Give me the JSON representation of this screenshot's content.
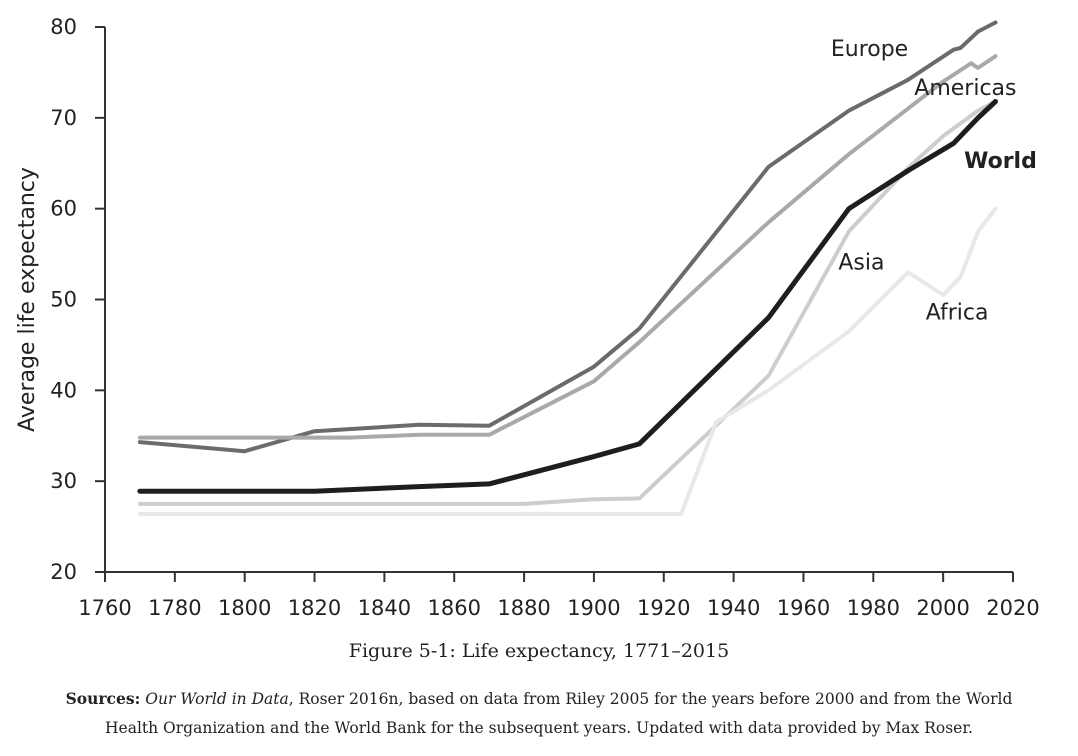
{
  "chart_data": {
    "type": "line",
    "xlabel": "",
    "ylabel": "Average life expectancy",
    "xlim": [
      1760,
      2020
    ],
    "ylim": [
      20,
      80
    ],
    "x_ticks": [
      1760,
      1780,
      1800,
      1820,
      1840,
      1860,
      1880,
      1900,
      1920,
      1940,
      1960,
      1980,
      2000,
      2020
    ],
    "y_ticks": [
      20,
      30,
      40,
      50,
      60,
      70,
      80
    ],
    "grid": false,
    "series": [
      {
        "name": "Europe",
        "color": "#6b6b6b",
        "width": 4,
        "bold": false,
        "points": [
          [
            1770,
            34.3
          ],
          [
            1800,
            33.3
          ],
          [
            1820,
            35.5
          ],
          [
            1850,
            36.2
          ],
          [
            1870,
            36.1
          ],
          [
            1900,
            42.6
          ],
          [
            1913,
            46.8
          ],
          [
            1950,
            64.6
          ],
          [
            1973,
            70.8
          ],
          [
            1990,
            74.2
          ],
          [
            2003,
            77.5
          ],
          [
            2005,
            77.7
          ],
          [
            2010,
            79.5
          ],
          [
            2015,
            80.5
          ]
        ]
      },
      {
        "name": "Americas",
        "color": "#a9a9a9",
        "width": 4,
        "bold": false,
        "points": [
          [
            1770,
            34.8
          ],
          [
            1800,
            34.8
          ],
          [
            1830,
            34.8
          ],
          [
            1850,
            35.1
          ],
          [
            1870,
            35.1
          ],
          [
            1900,
            41.0
          ],
          [
            1913,
            45.3
          ],
          [
            1950,
            58.5
          ],
          [
            1973,
            66.0
          ],
          [
            2000,
            74.0
          ],
          [
            2008,
            76.0
          ],
          [
            2010,
            75.5
          ],
          [
            2015,
            76.8
          ]
        ]
      },
      {
        "name": "Asia",
        "color": "#cdcdcd",
        "width": 4,
        "bold": false,
        "points": [
          [
            1770,
            27.5
          ],
          [
            1880,
            27.5
          ],
          [
            1900,
            28.0
          ],
          [
            1913,
            28.1
          ],
          [
            1950,
            41.6
          ],
          [
            1973,
            57.5
          ],
          [
            1990,
            64.5
          ],
          [
            2000,
            68.0
          ],
          [
            2010,
            70.8
          ],
          [
            2015,
            71.8
          ]
        ]
      },
      {
        "name": "Africa",
        "color": "#e8e8e8",
        "width": 4,
        "bold": false,
        "points": [
          [
            1770,
            26.4
          ],
          [
            1925,
            26.4
          ],
          [
            1935,
            36.5
          ],
          [
            1950,
            40.0
          ],
          [
            1973,
            46.5
          ],
          [
            1990,
            53.0
          ],
          [
            2000,
            50.5
          ],
          [
            2005,
            52.5
          ],
          [
            2010,
            57.5
          ],
          [
            2015,
            60.0
          ]
        ]
      },
      {
        "name": "World",
        "color": "#1e1e1e",
        "width": 5,
        "bold": true,
        "points": [
          [
            1770,
            28.9
          ],
          [
            1820,
            28.9
          ],
          [
            1850,
            29.4
          ],
          [
            1870,
            29.7
          ],
          [
            1900,
            32.7
          ],
          [
            1913,
            34.1
          ],
          [
            1950,
            48.0
          ],
          [
            1973,
            60.0
          ],
          [
            1990,
            64.2
          ],
          [
            2003,
            67.2
          ],
          [
            2010,
            70.0
          ],
          [
            2015,
            71.8
          ]
        ]
      }
    ]
  },
  "caption": {
    "figure": "Figure 5-1: Life expectancy, 1771–2015",
    "sources_label": "Sources:",
    "sources_italic": "Our World in Data",
    "sources_text": ", Roser 2016n, based on data from Riley 2005 for the years before 2000 and from the World Health Organization and the World Bank for the subsequent years. Updated with data provided by Max Roser."
  }
}
